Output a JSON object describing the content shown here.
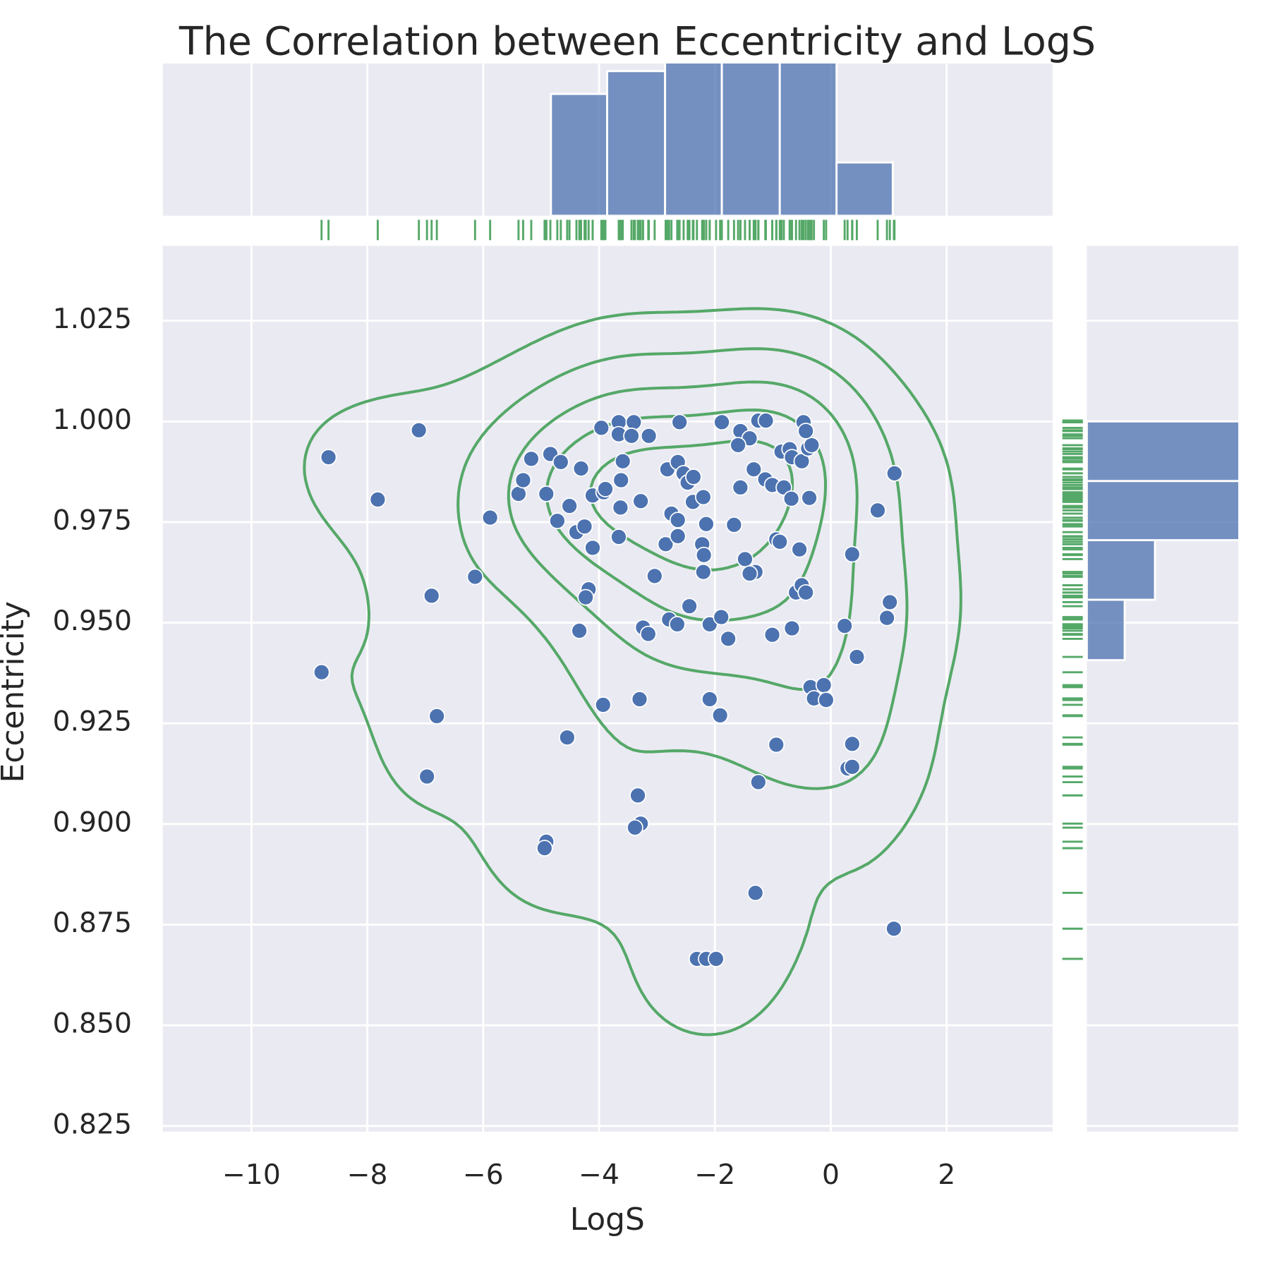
{
  "chart_data": {
    "type": "jointplot",
    "title": "The Correlation between Eccentricity and LogS",
    "x_label": "LogS",
    "y_label": "Eccentricity",
    "xlim": [
      -11.53,
      3.83
    ],
    "ylim": [
      0.8236,
      1.0436
    ],
    "xticks": [
      {
        "value": -10,
        "label": "−10"
      },
      {
        "value": -8,
        "label": "−8"
      },
      {
        "value": -6,
        "label": "−6"
      },
      {
        "value": -4,
        "label": "−4"
      },
      {
        "value": -2,
        "label": "−2"
      },
      0,
      2
    ],
    "yticks": [
      0.825,
      {
        "value": 0.85,
        "label": "0.850"
      },
      0.875,
      {
        "value": 0.9,
        "label": "0.900"
      },
      0.925,
      {
        "value": 0.95,
        "label": "0.950"
      },
      0.975,
      {
        "value": 1.0,
        "label": "1.000"
      },
      1.025
    ],
    "grid": true,
    "points": {
      "color": "#4c72b0",
      "x": [
        -8.67,
        -7.11,
        -7.82,
        -8.79,
        -6.89,
        -6.8,
        -6.97,
        -6.14,
        -5.88,
        -5.39,
        -5.31,
        -5.17,
        -4.84,
        -4.66,
        -4.91,
        -4.72,
        -4.51,
        -4.31,
        -4.39,
        -4.25,
        -4.11,
        -4.11,
        -3.92,
        -3.89,
        -3.96,
        -3.66,
        -3.66,
        -3.4,
        -3.44,
        -3.14,
        -3.59,
        -3.62,
        -3.63,
        -3.28,
        -3.66,
        -4.18,
        -4.23,
        -4.34,
        -3.93,
        -4.55,
        -3.04,
        -3.24,
        -3.15,
        -3.3,
        -3.33,
        -3.28,
        -3.38,
        -4.91,
        -4.94,
        -2.61,
        -2.82,
        -2.64,
        -2.54,
        -2.47,
        -2.37,
        -2.75,
        -2.64,
        -2.38,
        -2.2,
        -2.85,
        -2.64,
        -2.22,
        -2.19,
        -2.15,
        -2.2,
        -2.44,
        -2.79,
        -2.65,
        -2.09,
        -1.89,
        -1.77,
        -2.09,
        -1.91,
        -2.31,
        -2.15,
        -1.98,
        -1.88,
        -1.56,
        -1.4,
        -1.6,
        -1.25,
        -1.12,
        -1.33,
        -1.13,
        -1.01,
        -0.81,
        -1.56,
        -1.67,
        -1.48,
        -1.3,
        -1.4,
        -0.94,
        -0.88,
        -1.01,
        -0.67,
        -0.85,
        -0.71,
        -0.67,
        -0.5,
        -0.39,
        -0.33,
        -0.47,
        -0.43,
        -0.68,
        -0.37,
        -0.54,
        -0.6,
        -0.5,
        -0.43,
        -0.35,
        -0.29,
        -0.12,
        -0.08,
        -0.94,
        -1.25,
        -1.3,
        0.37,
        0.24,
        0.45,
        0.37,
        0.29,
        0.37,
        0.81,
        1.1,
        1.02,
        0.97,
        1.09
      ],
      "y": [
        0.9911,
        0.9978,
        0.9806,
        0.9377,
        0.9567,
        0.9268,
        0.9118,
        0.9614,
        0.9761,
        0.982,
        0.9854,
        0.9907,
        0.9919,
        0.9899,
        0.982,
        0.9753,
        0.979,
        0.9883,
        0.9725,
        0.9739,
        0.9686,
        0.9816,
        0.9824,
        0.9832,
        0.9984,
        0.9998,
        0.9968,
        0.9998,
        0.9964,
        0.9964,
        0.9901,
        0.9854,
        0.9786,
        0.9802,
        0.9713,
        0.9583,
        0.9563,
        0.948,
        0.9296,
        0.9215,
        0.9616,
        0.9488,
        0.9472,
        0.931,
        0.9071,
        0.9001,
        0.8991,
        0.8956,
        0.894,
        0.9998,
        0.9881,
        0.9899,
        0.9871,
        0.9848,
        0.9862,
        0.9771,
        0.9755,
        0.98,
        0.9812,
        0.9695,
        0.9715,
        0.9695,
        0.9668,
        0.9745,
        0.9626,
        0.9541,
        0.9508,
        0.9496,
        0.9496,
        0.9514,
        0.946,
        0.931,
        0.927,
        0.8665,
        0.8665,
        0.8665,
        0.9998,
        0.9976,
        0.9958,
        0.9941,
        1.0002,
        1.0002,
        0.9881,
        0.9856,
        0.9842,
        0.9836,
        0.9836,
        0.9743,
        0.9658,
        0.9626,
        0.9622,
        0.9707,
        0.9701,
        0.947,
        0.9486,
        0.9925,
        0.9931,
        0.9911,
        0.9901,
        0.9933,
        0.9941,
        0.9998,
        0.9976,
        0.9808,
        0.981,
        0.9682,
        0.9575,
        0.9593,
        0.9575,
        0.934,
        0.9312,
        0.9345,
        0.9308,
        0.9197,
        0.9104,
        0.8829,
        0.967,
        0.9492,
        0.9415,
        0.9199,
        0.9138,
        0.9142,
        0.9779,
        0.9871,
        0.9551,
        0.9512,
        0.874
      ]
    },
    "kde": {
      "color": "#55a868",
      "contours": 5
    },
    "rug": {
      "color": "#55a868"
    },
    "x_hist": {
      "color": "#4c72b0",
      "bins": [
        -4.83,
        -3.86,
        -2.86,
        -1.88,
        -0.88,
        0.1,
        1.07
      ],
      "counts": [
        16,
        19,
        22,
        21,
        21,
        7
      ],
      "ylim": [
        0,
        20
      ]
    },
    "y_hist": {
      "color": "#4c72b0",
      "bins": [
        0.9407,
        0.9557,
        0.9705,
        0.9852,
        1.0
      ],
      "counts": [
        10,
        18,
        44,
        46
      ],
      "xlim": [
        0,
        40
      ]
    }
  }
}
